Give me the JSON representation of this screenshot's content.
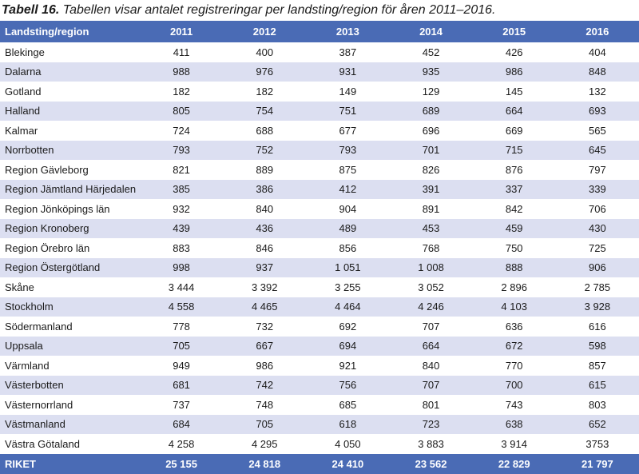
{
  "caption": {
    "label": "Tabell 16.",
    "text": "Tabellen visar antalet registreringar per landsting/region för åren 2011–2016."
  },
  "table": {
    "headers": [
      "Landsting/region",
      "2011",
      "2012",
      "2013",
      "2014",
      "2015",
      "2016"
    ],
    "rows": [
      [
        "Blekinge",
        "411",
        "400",
        "387",
        "452",
        "426",
        "404"
      ],
      [
        "Dalarna",
        "988",
        "976",
        "931",
        "935",
        "986",
        "848"
      ],
      [
        "Gotland",
        "182",
        "182",
        "149",
        "129",
        "145",
        "132"
      ],
      [
        "Halland",
        "805",
        "754",
        "751",
        "689",
        "664",
        "693"
      ],
      [
        "Kalmar",
        "724",
        "688",
        "677",
        "696",
        "669",
        "565"
      ],
      [
        "Norrbotten",
        "793",
        "752",
        "793",
        "701",
        "715",
        "645"
      ],
      [
        "Region Gävleborg",
        "821",
        "889",
        "875",
        "826",
        "876",
        "797"
      ],
      [
        "Region Jämtland Härjedalen",
        "385",
        "386",
        "412",
        "391",
        "337",
        "339"
      ],
      [
        "Region Jönköpings län",
        "932",
        "840",
        "904",
        "891",
        "842",
        "706"
      ],
      [
        "Region Kronoberg",
        "439",
        "436",
        "489",
        "453",
        "459",
        "430"
      ],
      [
        "Region Örebro län",
        "883",
        "846",
        "856",
        "768",
        "750",
        "725"
      ],
      [
        "Region Östergötland",
        "998",
        "937",
        "1 051",
        "1 008",
        "888",
        "906"
      ],
      [
        "Skåne",
        "3 444",
        "3 392",
        "3 255",
        "3 052",
        "2 896",
        "2 785"
      ],
      [
        "Stockholm",
        "4 558",
        "4 465",
        "4 464",
        "4 246",
        "4 103",
        "3 928"
      ],
      [
        "Södermanland",
        "778",
        "732",
        "692",
        "707",
        "636",
        "616"
      ],
      [
        "Uppsala",
        "705",
        "667",
        "694",
        "664",
        "672",
        "598"
      ],
      [
        "Värmland",
        "949",
        "986",
        "921",
        "840",
        "770",
        "857"
      ],
      [
        "Västerbotten",
        "681",
        "742",
        "756",
        "707",
        "700",
        "615"
      ],
      [
        "Västernorrland",
        "737",
        "748",
        "685",
        "801",
        "743",
        "803"
      ],
      [
        "Västmanland",
        "684",
        "705",
        "618",
        "723",
        "638",
        "652"
      ],
      [
        "Västra Götaland",
        "4 258",
        "4 295",
        "4 050",
        "3 883",
        "3 914",
        "3753"
      ]
    ],
    "total": [
      "RIKET",
      "25 155",
      "24 818",
      "24 410",
      "23 562",
      "22 829",
      "21 797"
    ]
  },
  "colors": {
    "header_bg": "#4a6bb5",
    "stripe_bg": "#dcdff1"
  }
}
